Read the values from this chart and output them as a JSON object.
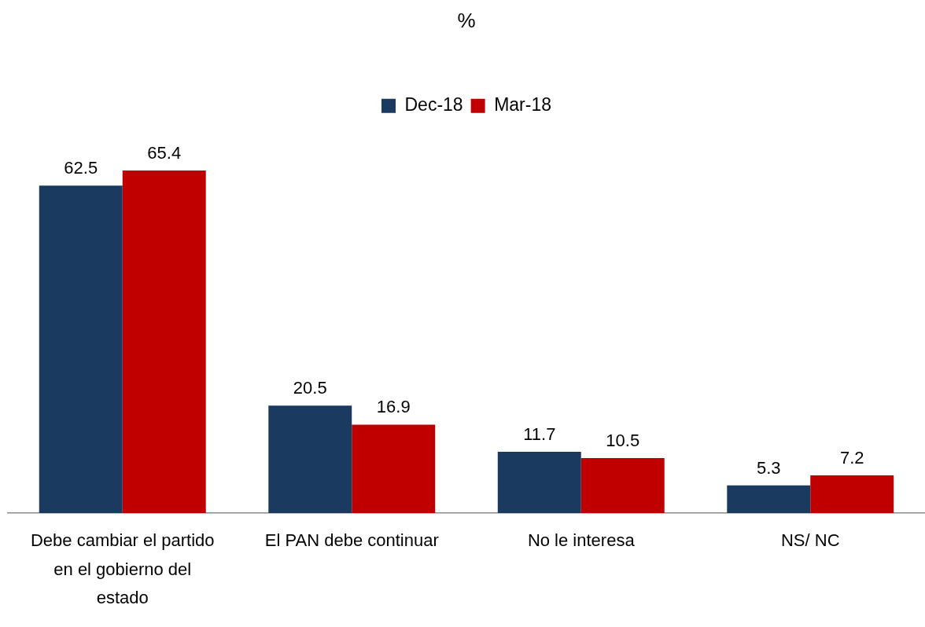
{
  "chart_data": {
    "type": "bar",
    "title": "%",
    "categories": [
      "Debe cambiar el partido en el gobierno del estado",
      "El PAN debe continuar",
      "No le interesa",
      "NS/ NC"
    ],
    "series": [
      {
        "name": "Dec-18",
        "color": "#1b3a5f",
        "values": [
          62.5,
          20.5,
          11.7,
          5.3
        ]
      },
      {
        "name": "Mar-18",
        "color": "#c00000",
        "values": [
          65.4,
          16.9,
          10.5,
          7.2
        ]
      }
    ],
    "data_labels": true,
    "legend": "top"
  }
}
